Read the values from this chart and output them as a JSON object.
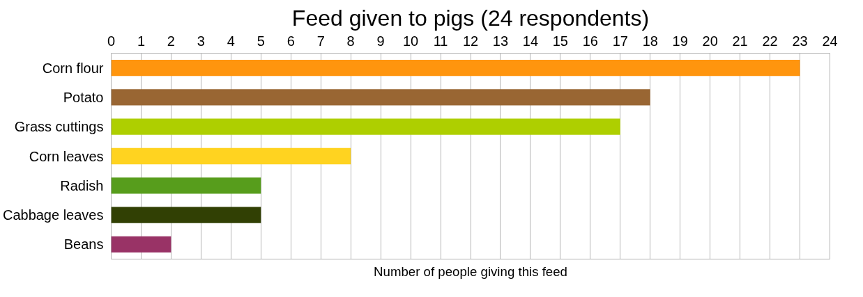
{
  "chart_data": {
    "type": "bar",
    "orientation": "horizontal",
    "title": "Feed given to pigs (24 respondents)",
    "xlabel": "Number of people giving this feed",
    "categories": [
      "Corn flour",
      "Potato",
      "Grass cuttings",
      "Corn leaves",
      "Radish",
      "Cabbage leaves",
      "Beans"
    ],
    "values": [
      23,
      18,
      17,
      8,
      5,
      5,
      2
    ],
    "colors": [
      "#ff950e",
      "#996633",
      "#aecf00",
      "#ffd320",
      "#579d1c",
      "#314004",
      "#993366"
    ],
    "xlim": [
      0,
      24
    ],
    "xticks": [
      0,
      1,
      2,
      3,
      4,
      5,
      6,
      7,
      8,
      9,
      10,
      11,
      12,
      13,
      14,
      15,
      16,
      17,
      18,
      19,
      20,
      21,
      22,
      23,
      24
    ],
    "grid": "x"
  }
}
